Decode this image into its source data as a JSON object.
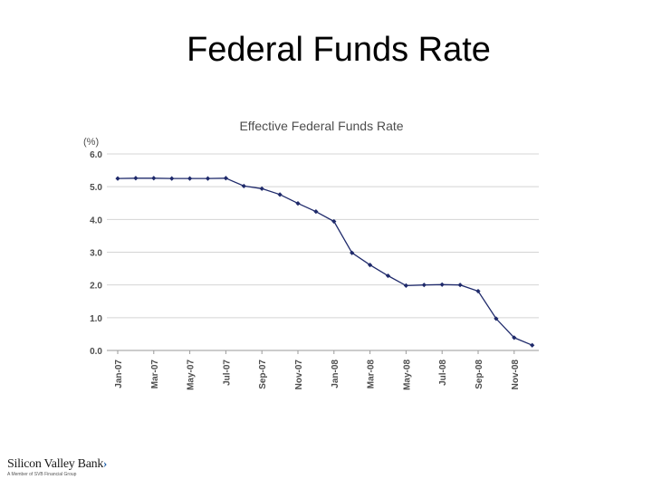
{
  "slide": {
    "title": "Federal Funds Rate"
  },
  "logo": {
    "name": "Silicon Valley Bank",
    "chevron": "›",
    "tagline": "A Member of SVB Financial Group"
  },
  "colors": {
    "series": "#1f2a6b",
    "grid": "#d4d4d4",
    "text": "#4d4d4d"
  },
  "chart_data": {
    "type": "line",
    "title": "Effective Federal Funds Rate",
    "ylabel": "(%)",
    "xlabel": "",
    "ylim": [
      0,
      6
    ],
    "yticks": [
      "0.0",
      "1.0",
      "2.0",
      "3.0",
      "4.0",
      "5.0",
      "6.0"
    ],
    "x_tick_labels": [
      "Jan-07",
      "Mar-07",
      "May-07",
      "Jul-07",
      "Sep-07",
      "Nov-07",
      "Jan-08",
      "Mar-08",
      "May-08",
      "Jul-08",
      "Sep-08",
      "Nov-08"
    ],
    "grid": true,
    "legend": "none",
    "series": [
      {
        "x": [
          "Jan-07",
          "Feb-07",
          "Mar-07",
          "Apr-07",
          "May-07",
          "Jun-07",
          "Jul-07",
          "Aug-07",
          "Sep-07",
          "Oct-07",
          "Nov-07",
          "Dec-07",
          "Jan-08",
          "Feb-08",
          "Mar-08",
          "Apr-08",
          "May-08",
          "Jun-08",
          "Jul-08",
          "Aug-08",
          "Sep-08",
          "Oct-08",
          "Nov-08",
          "Dec-08"
        ],
        "values": [
          5.25,
          5.26,
          5.26,
          5.25,
          5.25,
          5.25,
          5.26,
          5.02,
          4.94,
          4.76,
          4.49,
          4.24,
          3.94,
          2.98,
          2.61,
          2.28,
          1.98,
          2.0,
          2.01,
          2.0,
          1.81,
          0.97,
          0.39,
          0.16
        ]
      }
    ]
  }
}
